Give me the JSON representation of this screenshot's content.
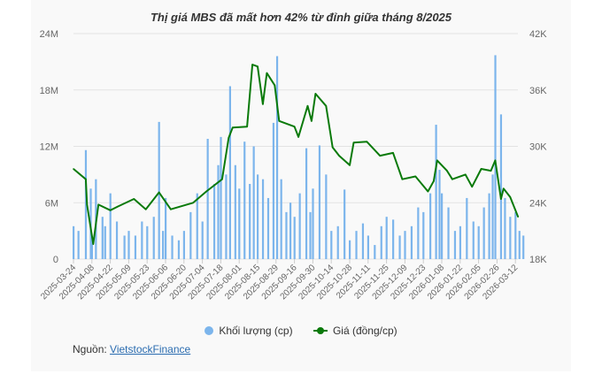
{
  "chart_data": {
    "type": "bar+line",
    "title": "Thị giá MBS đã mất hơn 42% từ đỉnh giữa tháng 8/2025",
    "x_tick_labels": [
      "2025-03-24",
      "2025-04-08",
      "2025-04-22",
      "2025-05-09",
      "2025-05-23",
      "2025-06-06",
      "2025-06-20",
      "2025-07-04",
      "2025-07-18",
      "2025-08-01",
      "2025-08-15",
      "2025-08-29",
      "2025-09-16",
      "2025-09-30",
      "2025-10-14",
      "2025-10-28",
      "2025-11-11",
      "2025-11-25",
      "2025-12-09",
      "2025-12-23",
      "2026-01-08",
      "2026-01-22",
      "2026-02-05",
      "2026-02-26",
      "2026-03-12"
    ],
    "y_left": {
      "ticks": [
        "0",
        "6M",
        "12M",
        "18M",
        "24M"
      ],
      "range": [
        0,
        24000000
      ]
    },
    "y_right": {
      "ticks": [
        "18K",
        "24K",
        "30K",
        "36K",
        "42K"
      ],
      "range": [
        18000,
        42000
      ]
    },
    "grid": true,
    "legend_position": "bottom",
    "series": [
      {
        "name": "Khối lượng (cp)",
        "kind": "bar",
        "color": "#7cb5ec",
        "unit": "M",
        "points": [
          [
            "2025-03-24",
            3.5
          ],
          [
            "2025-03-28",
            3.0
          ],
          [
            "2025-04-03",
            11.6
          ],
          [
            "2025-04-07",
            7.5
          ],
          [
            "2025-04-08",
            2.0
          ],
          [
            "2025-04-11",
            8.5
          ],
          [
            "2025-04-16",
            4.5
          ],
          [
            "2025-04-18",
            3.5
          ],
          [
            "2025-04-22",
            7.0
          ],
          [
            "2025-04-28",
            4.0
          ],
          [
            "2025-05-05",
            2.5
          ],
          [
            "2025-05-09",
            3.0
          ],
          [
            "2025-05-14",
            2.5
          ],
          [
            "2025-05-19",
            4.0
          ],
          [
            "2025-05-23",
            3.5
          ],
          [
            "2025-05-28",
            4.5
          ],
          [
            "2025-06-01",
            14.6
          ],
          [
            "2025-06-04",
            3.0
          ],
          [
            "2025-06-06",
            6.5
          ],
          [
            "2025-06-11",
            2.5
          ],
          [
            "2025-06-16",
            2.0
          ],
          [
            "2025-06-20",
            3.0
          ],
          [
            "2025-06-25",
            5.0
          ],
          [
            "2025-06-30",
            7.0
          ],
          [
            "2025-07-04",
            4.0
          ],
          [
            "2025-07-08",
            12.8
          ],
          [
            "2025-07-13",
            8.0
          ],
          [
            "2025-07-16",
            10.0
          ],
          [
            "2025-07-18",
            13.0
          ],
          [
            "2025-07-22",
            9.0
          ],
          [
            "2025-07-25",
            18.4
          ],
          [
            "2025-07-29",
            10.0
          ],
          [
            "2025-08-01",
            7.5
          ],
          [
            "2025-08-05",
            12.5
          ],
          [
            "2025-08-09",
            8.0
          ],
          [
            "2025-08-12",
            12.0
          ],
          [
            "2025-08-15",
            9.0
          ],
          [
            "2025-08-19",
            8.5
          ],
          [
            "2025-08-23",
            6.5
          ],
          [
            "2025-08-27",
            14.5
          ],
          [
            "2025-08-30",
            21.6
          ],
          [
            "2025-09-03",
            8.5
          ],
          [
            "2025-09-08",
            5.0
          ],
          [
            "2025-09-12",
            6.0
          ],
          [
            "2025-09-16",
            4.5
          ],
          [
            "2025-09-20",
            7.0
          ],
          [
            "2025-09-25",
            11.8
          ],
          [
            "2025-09-28",
            5.0
          ],
          [
            "2025-09-30",
            7.5
          ],
          [
            "2025-10-05",
            12.1
          ],
          [
            "2025-10-10",
            9.0
          ],
          [
            "2025-10-14",
            3.0
          ],
          [
            "2025-10-19",
            3.5
          ],
          [
            "2025-10-24",
            7.4
          ],
          [
            "2025-10-28",
            2.0
          ],
          [
            "2025-11-02",
            3.0
          ],
          [
            "2025-11-07",
            3.8
          ],
          [
            "2025-11-11",
            2.5
          ],
          [
            "2025-11-16",
            1.5
          ],
          [
            "2025-11-21",
            3.5
          ],
          [
            "2025-11-25",
            4.5
          ],
          [
            "2025-11-30",
            4.2
          ],
          [
            "2025-12-05",
            2.5
          ],
          [
            "2025-12-09",
            3.0
          ],
          [
            "2025-12-14",
            3.5
          ],
          [
            "2025-12-19",
            5.5
          ],
          [
            "2025-12-23",
            5.0
          ],
          [
            "2025-12-29",
            7.0
          ],
          [
            "2026-01-03",
            14.3
          ],
          [
            "2026-01-06",
            9.5
          ],
          [
            "2026-01-08",
            7.0
          ],
          [
            "2026-01-13",
            5.5
          ],
          [
            "2026-01-18",
            3.0
          ],
          [
            "2026-01-22",
            3.5
          ],
          [
            "2026-01-27",
            6.5
          ],
          [
            "2026-02-01",
            4.0
          ],
          [
            "2026-02-05",
            3.5
          ],
          [
            "2026-02-11",
            5.5
          ],
          [
            "2026-02-17",
            7.0
          ],
          [
            "2026-02-21",
            9.0
          ],
          [
            "2026-02-24",
            21.7
          ],
          [
            "2026-03-01",
            15.4
          ],
          [
            "2026-03-04",
            6.5
          ],
          [
            "2026-03-08",
            4.5
          ],
          [
            "2026-03-12",
            5.0
          ],
          [
            "2026-03-15",
            3.0
          ],
          [
            "2026-03-18",
            2.5
          ]
        ]
      },
      {
        "name": "Giá (đồng/cp)",
        "kind": "line",
        "color": "#0a7a0a",
        "unit": "K",
        "points": [
          [
            "2025-03-24",
            27.6
          ],
          [
            "2025-04-03",
            26.5
          ],
          [
            "2025-04-04",
            23.8
          ],
          [
            "2025-04-09",
            19.6
          ],
          [
            "2025-04-13",
            23.8
          ],
          [
            "2025-04-22",
            23.2
          ],
          [
            "2025-04-29",
            23.6
          ],
          [
            "2025-05-13",
            24.4
          ],
          [
            "2025-05-22",
            23.3
          ],
          [
            "2025-06-01",
            25.1
          ],
          [
            "2025-06-10",
            23.3
          ],
          [
            "2025-06-27",
            24.0
          ],
          [
            "2025-07-07",
            25.2
          ],
          [
            "2025-07-19",
            26.5
          ],
          [
            "2025-07-24",
            30.9
          ],
          [
            "2025-07-27",
            32.0
          ],
          [
            "2025-08-07",
            32.1
          ],
          [
            "2025-08-11",
            38.7
          ],
          [
            "2025-08-15",
            38.5
          ],
          [
            "2025-08-19",
            34.5
          ],
          [
            "2025-08-22",
            37.8
          ],
          [
            "2025-08-28",
            36.5
          ],
          [
            "2025-09-01",
            32.7
          ],
          [
            "2025-09-16",
            32.1
          ],
          [
            "2025-09-19",
            31.0
          ],
          [
            "2025-09-26",
            34.3
          ],
          [
            "2025-09-29",
            32.7
          ],
          [
            "2025-10-02",
            35.6
          ],
          [
            "2025-10-10",
            34.3
          ],
          [
            "2025-10-15",
            29.9
          ],
          [
            "2025-10-20",
            29.0
          ],
          [
            "2025-10-28",
            28.0
          ],
          [
            "2025-10-31",
            30.4
          ],
          [
            "2025-11-10",
            30.5
          ],
          [
            "2025-11-20",
            29.0
          ],
          [
            "2025-11-30",
            29.3
          ],
          [
            "2025-12-07",
            26.5
          ],
          [
            "2025-12-17",
            26.8
          ],
          [
            "2025-12-27",
            25.2
          ],
          [
            "2026-01-01",
            26.3
          ],
          [
            "2026-01-04",
            28.5
          ],
          [
            "2026-01-12",
            27.4
          ],
          [
            "2026-01-16",
            26.5
          ],
          [
            "2026-01-26",
            27.0
          ],
          [
            "2026-01-31",
            25.7
          ],
          [
            "2026-02-08",
            27.6
          ],
          [
            "2026-02-19",
            27.4
          ],
          [
            "2026-02-24",
            28.5
          ],
          [
            "2026-03-01",
            24.4
          ],
          [
            "2026-03-03",
            25.5
          ],
          [
            "2026-03-08",
            24.6
          ],
          [
            "2026-03-14",
            22.5
          ]
        ]
      }
    ]
  },
  "legend": {
    "volume": "Khối lượng (cp)",
    "price": "Giá (đồng/cp)"
  },
  "source": {
    "label": "Nguồn:",
    "link": "VietstockFinance"
  }
}
